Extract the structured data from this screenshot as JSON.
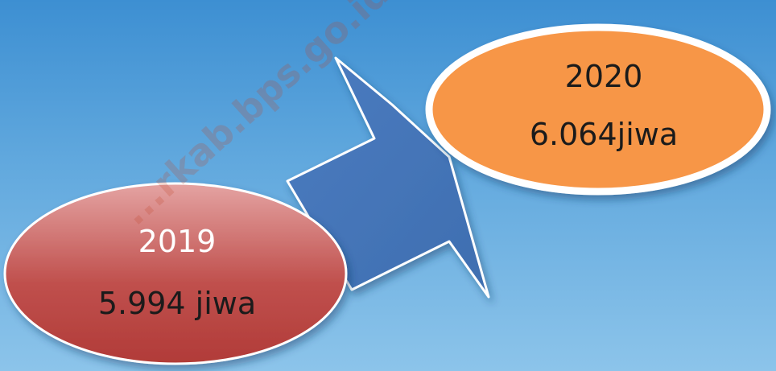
{
  "nodes": [
    {
      "year": "2019",
      "value": "5.994 jiwa",
      "fill": "#c0504d"
    },
    {
      "year": "2020",
      "value": "6.064jiwa",
      "fill": "#f79646"
    }
  ],
  "arrow": {
    "fill": "#4f81bd",
    "direction": "up-right"
  },
  "watermark": "...rkab.bps.go.id",
  "colors": {
    "background_top": "#3d8fd2",
    "background_bottom": "#8cc4ea",
    "outline": "#ffffff"
  }
}
